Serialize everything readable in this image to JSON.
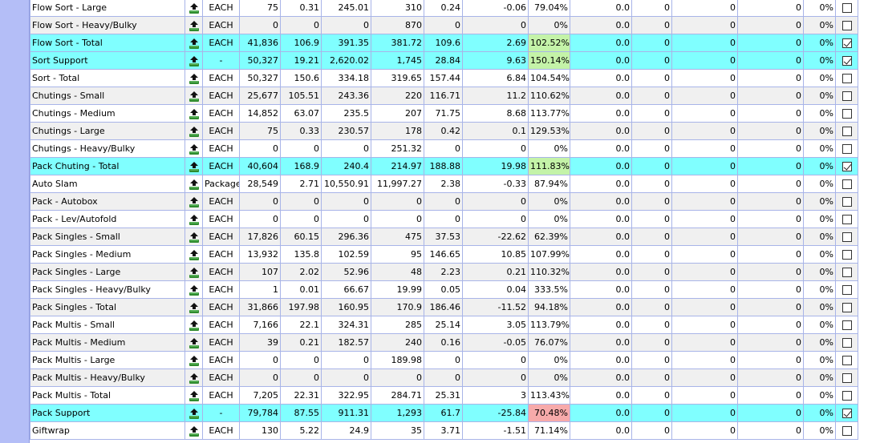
{
  "colors": {
    "gutter": "#b4bef7",
    "total_row": "#80ffff",
    "good_pct": "#c4f3a8",
    "bad_pct": "#f7aaaa"
  },
  "icons": {
    "row_action": "upload-arrow-icon"
  },
  "rows": [
    {
      "name": "Flow Sort - Large",
      "uom": "EACH",
      "c1": "75",
      "c2": "0.31",
      "c3": "245.01",
      "c4": "310",
      "c5": "0.24",
      "c6": "-0.06",
      "pct": "79.04%",
      "v1": "0.0",
      "v2": "0",
      "v3": "0",
      "v4": "0",
      "v5": "0%",
      "checked": false,
      "total": false,
      "pct_color": ""
    },
    {
      "name": "Flow Sort - Heavy/Bulky",
      "uom": "EACH",
      "c1": "0",
      "c2": "0",
      "c3": "0",
      "c4": "870",
      "c5": "0",
      "c6": "0",
      "pct": "0%",
      "v1": "0.0",
      "v2": "0",
      "v3": "0",
      "v4": "0",
      "v5": "0%",
      "checked": false,
      "total": false,
      "pct_color": ""
    },
    {
      "name": "Flow Sort - Total",
      "uom": "EACH",
      "c1": "41,836",
      "c2": "106.9",
      "c3": "391.35",
      "c4": "381.72",
      "c5": "109.6",
      "c6": "2.69",
      "pct": "102.52%",
      "v1": "0.0",
      "v2": "0",
      "v3": "0",
      "v4": "0",
      "v5": "0%",
      "checked": true,
      "total": true,
      "pct_color": "green"
    },
    {
      "name": "Sort Support",
      "uom": "-",
      "c1": "50,327",
      "c2": "19.21",
      "c3": "2,620.02",
      "c4": "1,745",
      "c5": "28.84",
      "c6": "9.63",
      "pct": "150.14%",
      "v1": "0.0",
      "v2": "0",
      "v3": "0",
      "v4": "0",
      "v5": "0%",
      "checked": true,
      "total": true,
      "pct_color": "green"
    },
    {
      "name": "Sort - Total",
      "uom": "EACH",
      "c1": "50,327",
      "c2": "150.6",
      "c3": "334.18",
      "c4": "319.65",
      "c5": "157.44",
      "c6": "6.84",
      "pct": "104.54%",
      "v1": "0.0",
      "v2": "0",
      "v3": "0",
      "v4": "0",
      "v5": "0%",
      "checked": false,
      "total": false,
      "pct_color": ""
    },
    {
      "name": "Chutings - Small",
      "uom": "EACH",
      "c1": "25,677",
      "c2": "105.51",
      "c3": "243.36",
      "c4": "220",
      "c5": "116.71",
      "c6": "11.2",
      "pct": "110.62%",
      "v1": "0.0",
      "v2": "0",
      "v3": "0",
      "v4": "0",
      "v5": "0%",
      "checked": false,
      "total": false,
      "pct_color": ""
    },
    {
      "name": "Chutings - Medium",
      "uom": "EACH",
      "c1": "14,852",
      "c2": "63.07",
      "c3": "235.5",
      "c4": "207",
      "c5": "71.75",
      "c6": "8.68",
      "pct": "113.77%",
      "v1": "0.0",
      "v2": "0",
      "v3": "0",
      "v4": "0",
      "v5": "0%",
      "checked": false,
      "total": false,
      "pct_color": ""
    },
    {
      "name": "Chutings - Large",
      "uom": "EACH",
      "c1": "75",
      "c2": "0.33",
      "c3": "230.57",
      "c4": "178",
      "c5": "0.42",
      "c6": "0.1",
      "pct": "129.53%",
      "v1": "0.0",
      "v2": "0",
      "v3": "0",
      "v4": "0",
      "v5": "0%",
      "checked": false,
      "total": false,
      "pct_color": ""
    },
    {
      "name": "Chutings - Heavy/Bulky",
      "uom": "EACH",
      "c1": "0",
      "c2": "0",
      "c3": "0",
      "c4": "251.32",
      "c5": "0",
      "c6": "0",
      "pct": "0%",
      "v1": "0.0",
      "v2": "0",
      "v3": "0",
      "v4": "0",
      "v5": "0%",
      "checked": false,
      "total": false,
      "pct_color": ""
    },
    {
      "name": "Pack Chuting - Total",
      "uom": "EACH",
      "c1": "40,604",
      "c2": "168.9",
      "c3": "240.4",
      "c4": "214.97",
      "c5": "188.88",
      "c6": "19.98",
      "pct": "111.83%",
      "v1": "0.0",
      "v2": "0",
      "v3": "0",
      "v4": "0",
      "v5": "0%",
      "checked": true,
      "total": true,
      "pct_color": "green"
    },
    {
      "name": "Auto Slam",
      "uom": "Package",
      "c1": "28,549",
      "c2": "2.71",
      "c3": "10,550.91",
      "c4": "11,997.27",
      "c5": "2.38",
      "c6": "-0.33",
      "pct": "87.94%",
      "v1": "0.0",
      "v2": "0",
      "v3": "0",
      "v4": "0",
      "v5": "0%",
      "checked": false,
      "total": false,
      "pct_color": ""
    },
    {
      "name": "Pack - Autobox",
      "uom": "EACH",
      "c1": "0",
      "c2": "0",
      "c3": "0",
      "c4": "0",
      "c5": "0",
      "c6": "0",
      "pct": "0%",
      "v1": "0.0",
      "v2": "0",
      "v3": "0",
      "v4": "0",
      "v5": "0%",
      "checked": false,
      "total": false,
      "pct_color": ""
    },
    {
      "name": "Pack - Lev/Autofold",
      "uom": "EACH",
      "c1": "0",
      "c2": "0",
      "c3": "0",
      "c4": "0",
      "c5": "0",
      "c6": "0",
      "pct": "0%",
      "v1": "0.0",
      "v2": "0",
      "v3": "0",
      "v4": "0",
      "v5": "0%",
      "checked": false,
      "total": false,
      "pct_color": ""
    },
    {
      "name": "Pack Singles - Small",
      "uom": "EACH",
      "c1": "17,826",
      "c2": "60.15",
      "c3": "296.36",
      "c4": "475",
      "c5": "37.53",
      "c6": "-22.62",
      "pct": "62.39%",
      "v1": "0.0",
      "v2": "0",
      "v3": "0",
      "v4": "0",
      "v5": "0%",
      "checked": false,
      "total": false,
      "pct_color": ""
    },
    {
      "name": "Pack Singles - Medium",
      "uom": "EACH",
      "c1": "13,932",
      "c2": "135.8",
      "c3": "102.59",
      "c4": "95",
      "c5": "146.65",
      "c6": "10.85",
      "pct": "107.99%",
      "v1": "0.0",
      "v2": "0",
      "v3": "0",
      "v4": "0",
      "v5": "0%",
      "checked": false,
      "total": false,
      "pct_color": ""
    },
    {
      "name": "Pack Singles - Large",
      "uom": "EACH",
      "c1": "107",
      "c2": "2.02",
      "c3": "52.96",
      "c4": "48",
      "c5": "2.23",
      "c6": "0.21",
      "pct": "110.32%",
      "v1": "0.0",
      "v2": "0",
      "v3": "0",
      "v4": "0",
      "v5": "0%",
      "checked": false,
      "total": false,
      "pct_color": ""
    },
    {
      "name": "Pack Singles - Heavy/Bulky",
      "uom": "EACH",
      "c1": "1",
      "c2": "0.01",
      "c3": "66.67",
      "c4": "19.99",
      "c5": "0.05",
      "c6": "0.04",
      "pct": "333.5%",
      "v1": "0.0",
      "v2": "0",
      "v3": "0",
      "v4": "0",
      "v5": "0%",
      "checked": false,
      "total": false,
      "pct_color": ""
    },
    {
      "name": "Pack Singles - Total",
      "uom": "EACH",
      "c1": "31,866",
      "c2": "197.98",
      "c3": "160.95",
      "c4": "170.9",
      "c5": "186.46",
      "c6": "-11.52",
      "pct": "94.18%",
      "v1": "0.0",
      "v2": "0",
      "v3": "0",
      "v4": "0",
      "v5": "0%",
      "checked": false,
      "total": false,
      "pct_color": ""
    },
    {
      "name": "Pack Multis - Small",
      "uom": "EACH",
      "c1": "7,166",
      "c2": "22.1",
      "c3": "324.31",
      "c4": "285",
      "c5": "25.14",
      "c6": "3.05",
      "pct": "113.79%",
      "v1": "0.0",
      "v2": "0",
      "v3": "0",
      "v4": "0",
      "v5": "0%",
      "checked": false,
      "total": false,
      "pct_color": ""
    },
    {
      "name": "Pack Multis - Medium",
      "uom": "EACH",
      "c1": "39",
      "c2": "0.21",
      "c3": "182.57",
      "c4": "240",
      "c5": "0.16",
      "c6": "-0.05",
      "pct": "76.07%",
      "v1": "0.0",
      "v2": "0",
      "v3": "0",
      "v4": "0",
      "v5": "0%",
      "checked": false,
      "total": false,
      "pct_color": ""
    },
    {
      "name": "Pack Multis - Large",
      "uom": "EACH",
      "c1": "0",
      "c2": "0",
      "c3": "0",
      "c4": "189.98",
      "c5": "0",
      "c6": "0",
      "pct": "0%",
      "v1": "0.0",
      "v2": "0",
      "v3": "0",
      "v4": "0",
      "v5": "0%",
      "checked": false,
      "total": false,
      "pct_color": ""
    },
    {
      "name": "Pack Multis - Heavy/Bulky",
      "uom": "EACH",
      "c1": "0",
      "c2": "0",
      "c3": "0",
      "c4": "0",
      "c5": "0",
      "c6": "0",
      "pct": "0%",
      "v1": "0.0",
      "v2": "0",
      "v3": "0",
      "v4": "0",
      "v5": "0%",
      "checked": false,
      "total": false,
      "pct_color": ""
    },
    {
      "name": "Pack Multis - Total",
      "uom": "EACH",
      "c1": "7,205",
      "c2": "22.31",
      "c3": "322.95",
      "c4": "284.71",
      "c5": "25.31",
      "c6": "3",
      "pct": "113.43%",
      "v1": "0.0",
      "v2": "0",
      "v3": "0",
      "v4": "0",
      "v5": "0%",
      "checked": false,
      "total": false,
      "pct_color": ""
    },
    {
      "name": "Pack Support",
      "uom": "-",
      "c1": "79,784",
      "c2": "87.55",
      "c3": "911.31",
      "c4": "1,293",
      "c5": "61.7",
      "c6": "-25.84",
      "pct": "70.48%",
      "v1": "0.0",
      "v2": "0",
      "v3": "0",
      "v4": "0",
      "v5": "0%",
      "checked": true,
      "total": true,
      "pct_color": "red"
    },
    {
      "name": "Giftwrap",
      "uom": "EACH",
      "c1": "130",
      "c2": "5.22",
      "c3": "24.9",
      "c4": "35",
      "c5": "3.71",
      "c6": "-1.51",
      "pct": "71.14%",
      "v1": "0.0",
      "v2": "0",
      "v3": "0",
      "v4": "0",
      "v5": "0%",
      "checked": false,
      "total": false,
      "pct_color": ""
    }
  ]
}
